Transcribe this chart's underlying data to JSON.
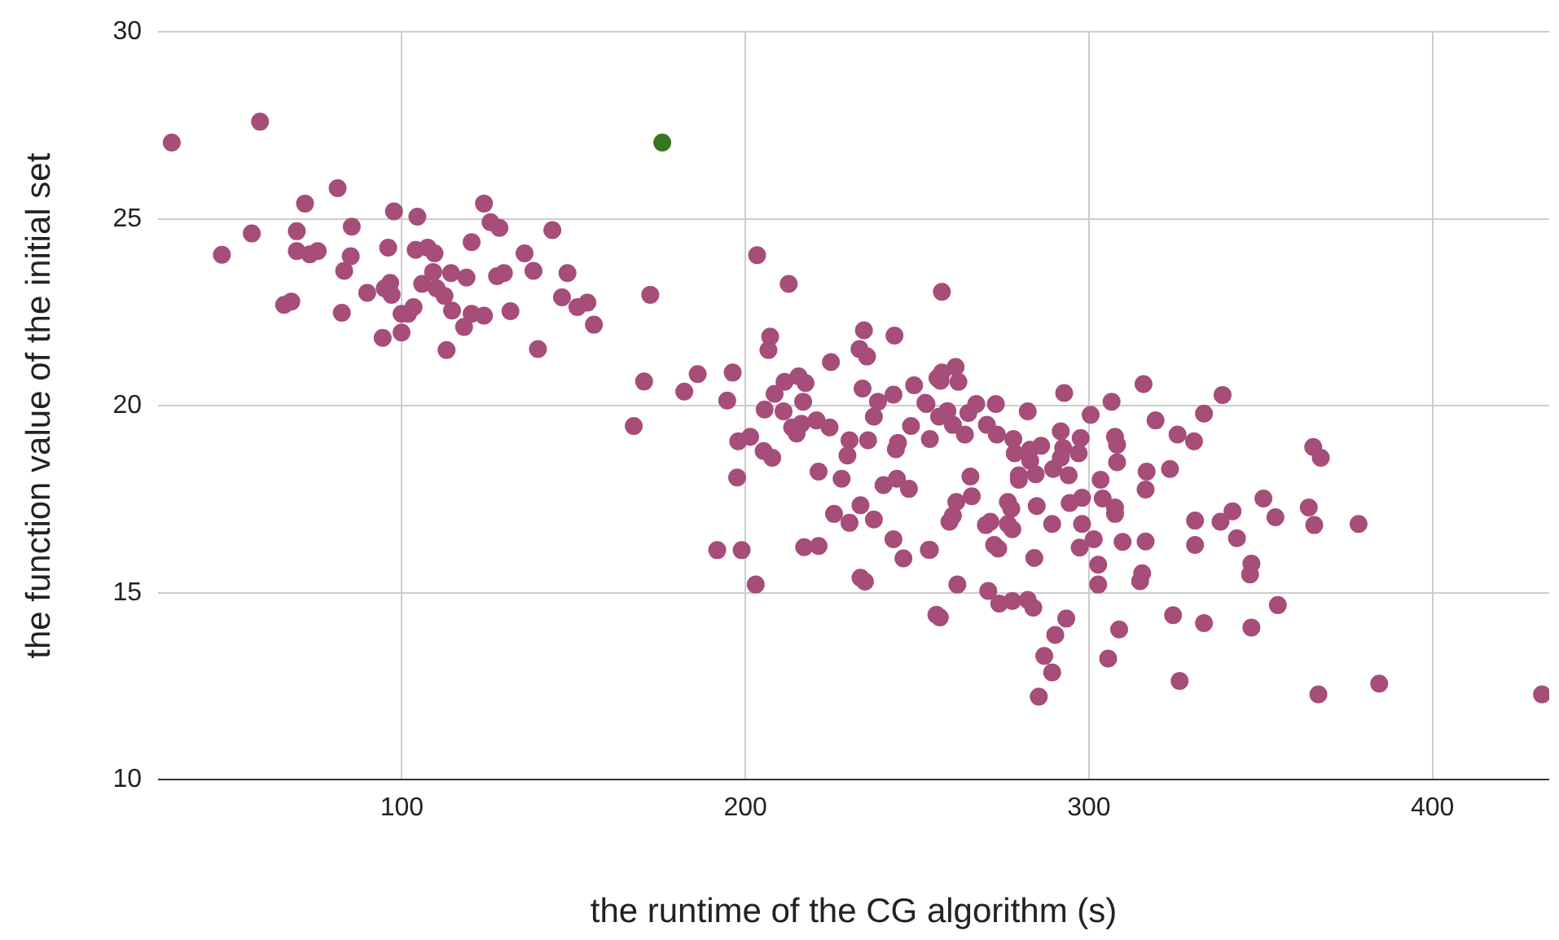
{
  "chart_data": {
    "type": "scatter",
    "xlabel": "the runtime of the CG algorithm (s)",
    "ylabel": "the function value of the initial set",
    "xlim": [
      29,
      434
    ],
    "xticks": [
      100,
      200,
      300,
      400
    ],
    "ylim": [
      10,
      30
    ],
    "yticks": [
      10,
      15,
      20,
      25,
      30
    ],
    "grid": true,
    "legend": false,
    "marker": "circle",
    "series": [
      {
        "color": "#a64d79",
        "x": [
          33,
          58.7,
          81.3,
          71.8,
          56.3,
          47.6,
          69.4,
          69.4,
          73.2,
          75.5,
          85.4,
          85.1,
          83.2,
          65.7,
          67.8,
          82.5,
          89.9,
          95,
          96.6,
          97,
          96,
          97.7,
          104.5,
          94.4,
          99.9,
          99.9,
          103.4,
          101.8,
          104,
          107.5,
          109.5,
          105.9,
          109.1,
          110.1,
          112.4,
          114.3,
          118.8,
          114.6,
          113,
          120.3,
          123.9,
          118.1,
          120.3,
          123.9,
          125.8,
          128.4,
          135.7,
          138.3,
          127.7,
          129.7,
          131.6,
          139.6,
          143.8,
          148.2,
          146.6,
          151.1,
          154,
          155.9,
          172.3,
          203.4,
          212.6,
          170.5,
          167.5,
          182.2,
          186.1,
          196.3,
          194.7,
          197.9,
          201.4,
          197.6,
          205.3,
          207.8,
          191.8,
          198.9,
          203,
          207.2,
          206.7,
          205.6,
          208.5,
          211.1,
          211.4,
          215.5,
          217.5,
          216.8,
          213.6,
          216.3,
          220.7,
          224.5,
          214.9,
          224.9,
          221.3,
          228,
          230.3,
          235.7,
          229.7,
          225.8,
          230.3,
          233.5,
          237.4,
          217.1,
          221.3,
          233.5,
          234.8,
          243.1,
          246,
          253.4,
          234.5,
          233.2,
          235.4,
          243.4,
          234.1,
          238.6,
          237.4,
          243.1,
          249.1,
          252.7,
          248.2,
          244.4,
          243.8,
          253.7,
          240.2,
          244.1,
          247.6,
          256.8,
          257.2,
          255.6,
          255.9,
          257.2,
          261.2,
          262,
          252.4,
          256.4,
          258.8,
          260.4,
          263.9,
          264.9,
          267.2,
          272.9,
          270.3,
          273.2,
          282.2,
          292.8,
          278,
          278.4,
          282.9,
          286.1,
          282.9,
          291.8,
          292.5,
          291.8,
          297.6,
          297,
          289.6,
          294.1,
          279.6,
          284.5,
          279.6,
          265.5,
          265.9,
          261.4,
          260.4,
          259.4,
          253.7,
          270,
          271.3,
          276.4,
          277.4,
          276.4,
          277.7,
          284.8,
          289.3,
          272.4,
          273.6,
          284.1,
          294.4,
          298,
          298,
          297.3,
          261.7,
          256.6,
          270.7,
          273.9,
          277.7,
          282.2,
          283.8,
          293.4,
          290.2,
          287,
          289.3,
          285.4,
          300.5,
          306.6,
          307.6,
          308.2,
          308.2,
          303.4,
          304,
          307.6,
          307.6,
          301.4,
          302.7,
          302.7,
          309.8,
          316.5,
          315.5,
          314.9,
          308.8,
          305.6,
          319.4,
          315.9,
          316.8,
          316.5,
          323.6,
          325.8,
          330.6,
          333.5,
          338.9,
          330.9,
          338.3,
          341.8,
          330.9,
          343.1,
          347.3,
          346.9,
          324.5,
          333.5,
          326.4,
          347.3,
          365.3,
          367.5,
          350.8,
          354.3,
          364,
          365.6,
          378.5,
          355,
          384.5,
          366.8,
          431.9
        ],
        "values": [
          27.04,
          27.6,
          25.82,
          25.41,
          24.61,
          24.04,
          24.67,
          24.14,
          24.05,
          24.14,
          24.79,
          24,
          23.61,
          22.7,
          22.79,
          22.49,
          23.02,
          23.14,
          23.29,
          22.97,
          24.23,
          25.2,
          25.06,
          21.82,
          21.96,
          22.46,
          22.64,
          22.46,
          24.17,
          24.23,
          24.08,
          23.26,
          23.58,
          23.14,
          22.94,
          23.55,
          23.43,
          22.55,
          21.49,
          22.46,
          22.41,
          22.11,
          24.38,
          25.41,
          24.91,
          24.76,
          24.08,
          23.61,
          23.47,
          23.55,
          22.53,
          21.52,
          24.7,
          23.55,
          22.9,
          22.64,
          22.76,
          22.17,
          22.97,
          24.03,
          23.26,
          20.65,
          19.46,
          20.38,
          20.85,
          20.89,
          20.14,
          19.05,
          19.17,
          18.08,
          18.79,
          18.61,
          16.14,
          16.14,
          15.22,
          21.85,
          21.49,
          19.9,
          20.32,
          19.85,
          20.64,
          20.79,
          20.61,
          20.11,
          19.42,
          19.52,
          19.61,
          19.42,
          19.26,
          21.17,
          18.24,
          18.05,
          19.08,
          19.08,
          18.67,
          17.11,
          16.87,
          17.34,
          16.96,
          16.22,
          16.25,
          15.4,
          15.3,
          16.43,
          15.92,
          16.15,
          22.02,
          21.52,
          21.32,
          21.88,
          20.46,
          20.11,
          19.71,
          20.3,
          20.55,
          20.05,
          19.46,
          19.01,
          18.84,
          19.11,
          17.88,
          18.05,
          17.78,
          20.67,
          23.05,
          14.41,
          20.74,
          20.89,
          21.04,
          20.64,
          20.08,
          19.71,
          19.86,
          19.49,
          19.23,
          19.81,
          20.05,
          20.05,
          19.49,
          19.23,
          19.85,
          20.34,
          19.11,
          18.73,
          18.83,
          18.93,
          18.53,
          19.32,
          18.87,
          18.61,
          19.14,
          18.73,
          18.31,
          18.14,
          18.14,
          18.17,
          18.02,
          18.11,
          17.58,
          17.43,
          17.06,
          16.9,
          16.15,
          16.81,
          16.9,
          17.43,
          17.25,
          16.84,
          16.7,
          17.32,
          16.84,
          16.28,
          16.18,
          15.93,
          17.4,
          17.54,
          16.84,
          16.21,
          15.22,
          14.34,
          15.05,
          14.71,
          14.78,
          14.81,
          14.6,
          14.31,
          13.87,
          13.31,
          12.87,
          12.22,
          19.76,
          20.11,
          19.17,
          18.96,
          18.49,
          18.02,
          17.52,
          17.28,
          17.11,
          16.43,
          15.75,
          15.22,
          16.36,
          16.37,
          15.52,
          15.31,
          14.02,
          13.24,
          19.61,
          20.58,
          18.24,
          17.76,
          18.31,
          19.23,
          19.05,
          19.79,
          20.29,
          16.93,
          16.9,
          17.18,
          16.28,
          16.46,
          15.78,
          15.49,
          14.4,
          14.19,
          12.64,
          14.07,
          18.9,
          18.61,
          17.52,
          17.02,
          17.28,
          16.81,
          16.84,
          14.67,
          12.57,
          12.28,
          12.28
        ]
      },
      {
        "color": "#38761d",
        "x": [
          175.8
        ],
        "values": [
          27.04
        ]
      }
    ]
  }
}
